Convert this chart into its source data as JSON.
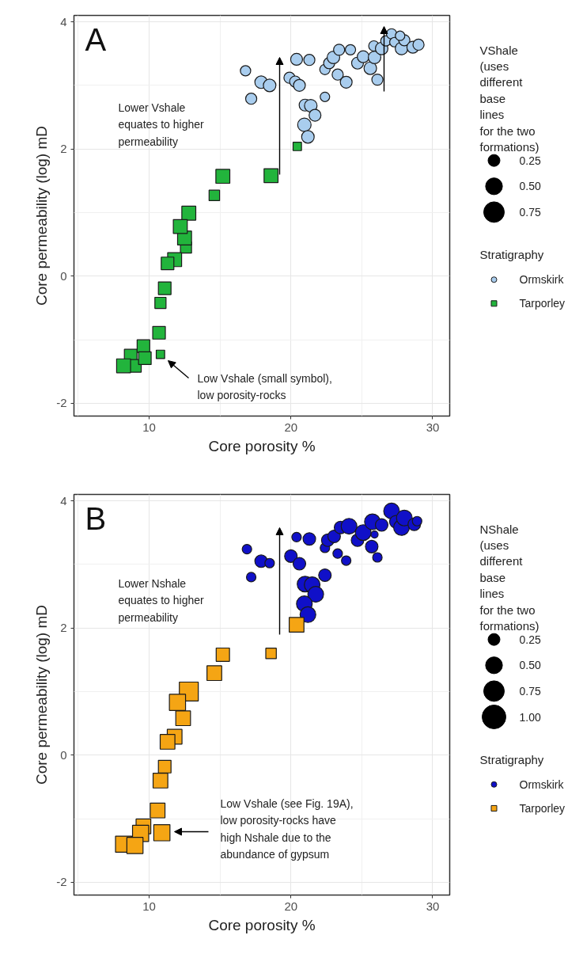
{
  "chart_data": [
    {
      "type": "bubble",
      "title": "A",
      "xlabel": "Core porosity %",
      "ylabel": "Core permeability (log) mD",
      "xlim": [
        4.7,
        31.2
      ],
      "ylim": [
        -2.2,
        4.1
      ],
      "xticks": [
        10,
        20,
        30
      ],
      "yticks": [
        -2,
        0,
        2,
        4
      ],
      "grid": true,
      "legend": "right",
      "legend_title": "Stratigraphy",
      "size_legend": [
        0.25,
        {
          "value": 0.5,
          "label": "0.50"
        },
        0.75
      ],
      "series": [
        {
          "name": "Ormskirk",
          "color": "#a9cdee",
          "marker": "circle",
          "x": [
            16.8,
            17.9,
            18.5,
            17.2,
            20.4,
            21.3,
            19.9,
            20.3,
            20.6,
            21.0,
            21.4,
            21.7,
            20.95,
            21.2,
            22.4,
            22.4,
            22.7,
            23.0,
            23.4,
            24.2,
            23.3,
            23.9,
            24.7,
            25.1,
            25.6,
            25.9,
            26.1,
            25.85,
            26.4,
            26.7,
            27.1,
            27.3,
            27.8,
            28.0,
            27.7,
            28.6,
            29.0
          ],
          "values": [
            3.23,
            3.05,
            3.0,
            2.79,
            3.41,
            3.4,
            3.12,
            3.06,
            3.0,
            2.69,
            2.68,
            2.53,
            2.38,
            2.19,
            2.82,
            3.25,
            3.35,
            3.44,
            3.56,
            3.56,
            3.17,
            3.05,
            3.35,
            3.45,
            3.27,
            3.44,
            3.09,
            3.62,
            3.58,
            3.7,
            3.81,
            3.68,
            3.58,
            3.71,
            3.78,
            3.6,
            3.64
          ],
          "sizes": [
            0.19,
            0.28,
            0.28,
            0.22,
            0.25,
            0.22,
            0.22,
            0.22,
            0.25,
            0.25,
            0.28,
            0.25,
            0.32,
            0.28,
            0.16,
            0.19,
            0.22,
            0.28,
            0.22,
            0.19,
            0.22,
            0.25,
            0.25,
            0.25,
            0.28,
            0.28,
            0.22,
            0.19,
            0.28,
            0.19,
            0.19,
            0.16,
            0.28,
            0.22,
            0.16,
            0.25,
            0.22
          ]
        },
        {
          "name": "Tarporley",
          "color": "#22b43c",
          "marker": "square",
          "x": [
            20.45,
            15.2,
            18.6,
            14.6,
            12.8,
            12.6,
            12.5,
            12.2,
            11.8,
            11.3,
            11.1,
            10.8,
            10.7,
            10.8,
            9.6,
            8.7,
            9.0,
            9.7,
            8.2
          ],
          "values": [
            2.04,
            1.57,
            1.58,
            1.27,
            0.99,
            0.45,
            0.6,
            0.78,
            0.26,
            0.2,
            -0.19,
            -0.42,
            -0.89,
            -1.23,
            -1.1,
            -1.25,
            -1.41,
            -1.29,
            -1.41
          ],
          "sizes": [
            0.16,
            0.44,
            0.44,
            0.25,
            0.44,
            0.28,
            0.44,
            0.44,
            0.44,
            0.36,
            0.36,
            0.28,
            0.36,
            0.16,
            0.36,
            0.36,
            0.36,
            0.36,
            0.44
          ]
        }
      ],
      "annotations": [
        "VShale\n(uses\ndifferent\nbase\nlines\nfor the two\nformations)",
        "Lower Vshale\nequates to higher\npermeability",
        "Low Vshale (small symbol),\nlow porosity-rocks"
      ]
    },
    {
      "type": "bubble",
      "title": "B",
      "xlabel": "Core porosity %",
      "ylabel": "Core permeability (log) mD",
      "xlim": [
        4.7,
        31.2
      ],
      "ylim": [
        -2.2,
        4.1
      ],
      "xticks": [
        10,
        20,
        30
      ],
      "yticks": [
        -2,
        0,
        2,
        4
      ],
      "grid": true,
      "legend": "right",
      "legend_title": "Stratigraphy",
      "size_legend": [
        0.25,
        {
          "value": 0.5,
          "label": "0.50"
        },
        0.75,
        {
          "value": 1.0,
          "label": "1.00"
        }
      ],
      "series": [
        {
          "name": "Ormskirk",
          "color": "#1010c8",
          "marker": "circle",
          "x": [
            16.9,
            17.9,
            18.5,
            17.2,
            20.4,
            21.3,
            20.0,
            20.6,
            22.4,
            21.0,
            21.5,
            21.75,
            20.95,
            21.2,
            22.4,
            22.6,
            23.05,
            23.5,
            24.1,
            23.3,
            23.9,
            24.7,
            25.1,
            25.9,
            25.7,
            26.1,
            25.75,
            26.4,
            27.1,
            27.4,
            27.8,
            28.0,
            28.7,
            28.9
          ],
          "values": [
            3.24,
            3.05,
            3.02,
            2.8,
            3.43,
            3.4,
            3.13,
            3.01,
            2.83,
            2.69,
            2.68,
            2.53,
            2.38,
            2.21,
            3.26,
            3.38,
            3.44,
            3.58,
            3.6,
            3.17,
            3.06,
            3.38,
            3.5,
            3.47,
            3.28,
            3.11,
            3.67,
            3.62,
            3.84,
            3.67,
            3.58,
            3.73,
            3.63,
            3.68
          ],
          "sizes": [
            0.16,
            0.28,
            0.16,
            0.16,
            0.16,
            0.28,
            0.28,
            0.28,
            0.28,
            0.44,
            0.44,
            0.44,
            0.44,
            0.44,
            0.16,
            0.28,
            0.28,
            0.28,
            0.44,
            0.16,
            0.16,
            0.28,
            0.44,
            0.09,
            0.28,
            0.16,
            0.44,
            0.28,
            0.44,
            0.28,
            0.44,
            0.44,
            0.28,
            0.16
          ]
        },
        {
          "name": "Tarporley",
          "color": "#f5a514",
          "marker": "square",
          "x": [
            20.4,
            15.2,
            18.6,
            14.6,
            12.8,
            12.0,
            12.4,
            11.8,
            11.3,
            11.1,
            10.8,
            10.6,
            10.9,
            9.6,
            9.4,
            8.2,
            9.0
          ],
          "values": [
            2.05,
            1.58,
            1.6,
            1.29,
            1.0,
            0.83,
            0.58,
            0.29,
            0.21,
            -0.18,
            -0.4,
            -0.87,
            -1.22,
            -1.12,
            -1.23,
            -1.4,
            -1.42
          ],
          "sizes": [
            0.49,
            0.4,
            0.25,
            0.49,
            0.81,
            0.59,
            0.49,
            0.49,
            0.49,
            0.36,
            0.49,
            0.49,
            0.59,
            0.49,
            0.59,
            0.59,
            0.59
          ]
        }
      ],
      "annotations": [
        "NShale\n(uses\ndifferent\nbase\nlines\nfor the two\nformations)",
        "Lower Nshale\nequates to higher\npermeability",
        "Low Vshale (see Fig. 19A),\nlow porosity-rocks have\nhigh Nshale due to the\nabundance of gypsum"
      ]
    }
  ]
}
